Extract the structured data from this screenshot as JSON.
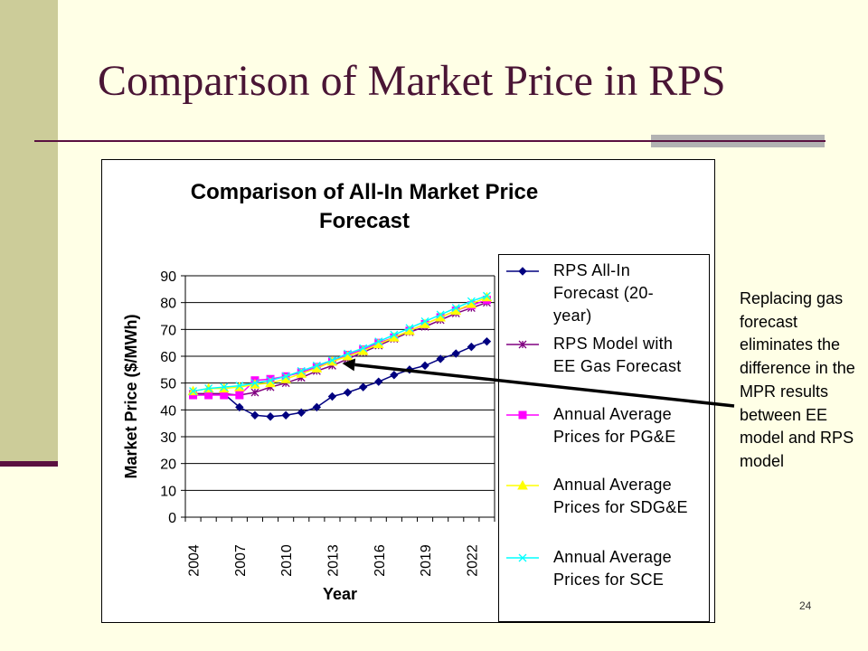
{
  "slide": {
    "title": "Comparison of Market Price in RPS",
    "annotation": "Replacing gas forecast eliminates the difference in the MPR results between EE model and RPS model",
    "page_number": "24"
  },
  "colors": {
    "background": "#ffffe6",
    "left_bar": "#cccc99",
    "title_text": "#4a1535",
    "rule": "#5a1040",
    "rule_accent": "#b2b2b2"
  },
  "chart_data": {
    "type": "line",
    "title": "Comparison of All-In Market Price Forecast",
    "title_lines": [
      "Comparison of All-In Market Price",
      "Forecast"
    ],
    "xlabel": "Year",
    "ylabel": "Market Price ($/MWh)",
    "ylim": [
      0,
      90
    ],
    "yticks": [
      0,
      10,
      20,
      30,
      40,
      50,
      60,
      70,
      80,
      90
    ],
    "x": [
      2004,
      2005,
      2006,
      2007,
      2008,
      2009,
      2010,
      2011,
      2012,
      2013,
      2014,
      2015,
      2016,
      2017,
      2018,
      2019,
      2020,
      2021,
      2022,
      2023
    ],
    "xtick_labels": [
      "2004",
      "2007",
      "2010",
      "2013",
      "2016",
      "2019",
      "2022"
    ],
    "grid": "horizontal",
    "legend_position": "right",
    "series": [
      {
        "name": "RPS All-In Forecast (20-year)",
        "name_lines": [
          "RPS All-In",
          "Forecast (20-",
          "year)"
        ],
        "color": "#000080",
        "marker": "diamond",
        "values": [
          46,
          46,
          46,
          41,
          38,
          37.5,
          38,
          39,
          41,
          45,
          46.5,
          48.5,
          50.5,
          53,
          55,
          56.5,
          59,
          61,
          63.5,
          65.5
        ]
      },
      {
        "name": "RPS Model with EE Gas Forecast",
        "name_lines": [
          "RPS Model with",
          "EE Gas Forecast"
        ],
        "color": "#800080",
        "marker": "star",
        "values": [
          46,
          46,
          46,
          45.5,
          46.5,
          48.5,
          50,
          52,
          54.5,
          56.5,
          59,
          61.5,
          64,
          66.5,
          69,
          71,
          73.5,
          76,
          78,
          80
        ]
      },
      {
        "name": "Annual Average Prices for PG&E",
        "name_lines": [
          "Annual Average",
          "Prices for PG&E"
        ],
        "color": "#ff00ff",
        "marker": "square",
        "values": [
          45.5,
          45.5,
          45.5,
          45.5,
          51,
          51.5,
          52.5,
          54,
          56,
          58,
          60.5,
          62.5,
          65,
          67,
          69.5,
          72,
          74.5,
          77,
          79,
          81
        ]
      },
      {
        "name": "Annual Average Prices for SDG&E",
        "name_lines": [
          "Annual Average",
          "Prices for SDG&E"
        ],
        "color": "#ffff00",
        "marker": "triangle",
        "values": [
          47,
          48,
          48,
          48.5,
          49.5,
          50,
          51.5,
          53.5,
          55.5,
          58,
          60,
          62,
          64.5,
          67,
          69.5,
          72,
          74.5,
          77,
          79.5,
          82
        ]
      },
      {
        "name": "Annual Average Prices for SCE",
        "name_lines": [
          "Annual Average",
          "Prices for SCE"
        ],
        "color": "#00ffff",
        "marker": "x",
        "values": [
          47,
          48,
          48.5,
          49,
          50,
          51,
          52.5,
          54.5,
          56.5,
          58.5,
          61,
          63,
          65.5,
          68,
          70.5,
          73,
          75.5,
          78,
          80.5,
          82.5
        ]
      }
    ]
  }
}
